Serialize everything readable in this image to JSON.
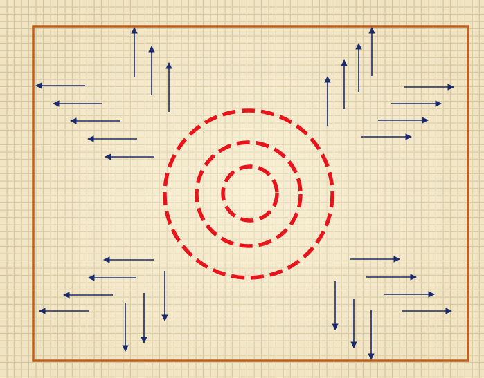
{
  "colors": {
    "paper": "#f0e4c3",
    "grid_line": "#cfc09a",
    "grid_shadow": "#b9a884",
    "frame": "#c0601e",
    "circles": "#e8141c",
    "arrows": "#1a2a6c",
    "glow": "#fff6dc"
  },
  "diagram": {
    "frame_present": true,
    "rings": [
      {
        "name": "outer-ring",
        "dashed": true
      },
      {
        "name": "middle-ring",
        "dashed": true
      },
      {
        "name": "inner-ring",
        "dashed": true
      }
    ],
    "arrow_groups": [
      {
        "name": "top-left-up",
        "direction": "up",
        "count": 3
      },
      {
        "name": "top-left-left",
        "direction": "left",
        "count": 5
      },
      {
        "name": "top-right-up",
        "direction": "up",
        "count": 4
      },
      {
        "name": "top-right-right",
        "direction": "right",
        "count": 4
      },
      {
        "name": "bottom-left-left",
        "direction": "left",
        "count": 4
      },
      {
        "name": "bottom-left-down",
        "direction": "down",
        "count": 3
      },
      {
        "name": "bottom-right-right",
        "direction": "right",
        "count": 4
      },
      {
        "name": "bottom-right-down",
        "direction": "down",
        "count": 3
      }
    ]
  }
}
